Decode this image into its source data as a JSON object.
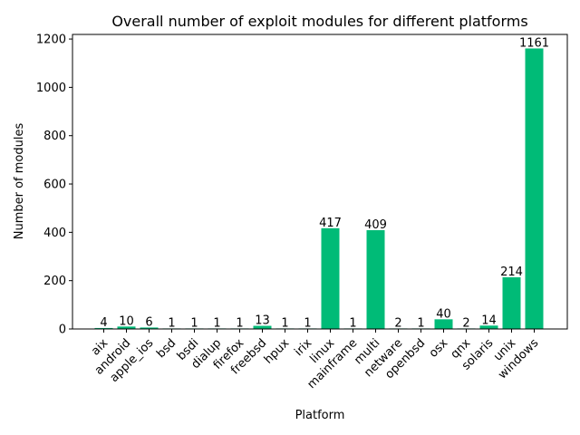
{
  "chart_data": {
    "type": "bar",
    "title": "Overall number of exploit modules for different platforms",
    "xlabel": "Platform",
    "ylabel": "Number of modules",
    "categories": [
      "aix",
      "android",
      "apple_ios",
      "bsd",
      "bsdi",
      "dialup",
      "firefox",
      "freebsd",
      "hpux",
      "irix",
      "linux",
      "mainframe",
      "multi",
      "netware",
      "openbsd",
      "osx",
      "qnx",
      "solaris",
      "unix",
      "windows"
    ],
    "values": [
      4,
      10,
      6,
      1,
      1,
      1,
      1,
      13,
      1,
      1,
      417,
      1,
      409,
      2,
      1,
      40,
      2,
      14,
      214,
      1161
    ],
    "data_labels": [
      "4",
      "10",
      "6",
      "1",
      "1",
      "1",
      "1",
      "13",
      "1",
      "1",
      "417",
      "1",
      "409",
      "2",
      "1",
      "40",
      "2",
      "14",
      "214",
      "1161"
    ],
    "ylim": [
      0,
      1219
    ],
    "yticks": [
      0,
      200,
      400,
      600,
      800,
      1000,
      1200
    ],
    "ytick_labels": [
      "0",
      "200",
      "400",
      "600",
      "800",
      "1000",
      "1200"
    ],
    "bar_color": "#00bb77",
    "grid": false,
    "legend": false
  }
}
